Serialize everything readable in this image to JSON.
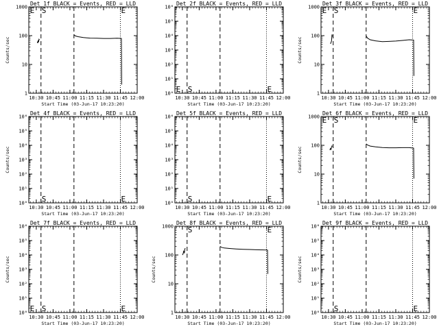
{
  "chart_data": [
    {
      "type": "line",
      "title": "Det 1f BLACK = Events, RED = LLD",
      "xlabel": "Start Time (03-Jun-17 10:23:20)",
      "ylabel": "Counts/sec",
      "yscale": "log",
      "ylim": [
        1,
        1000
      ],
      "y_tick_labels": [
        "1",
        "10",
        "100",
        "1000"
      ],
      "xlim_hours": [
        10.389,
        12.0
      ],
      "x_tick_labels": [
        "10:30",
        "10:45",
        "11:00",
        "11:15",
        "11:30",
        "11:45",
        "12:00"
      ],
      "vlines_dashed_hours": [
        10.57,
        11.06
      ],
      "vlines_dotted_hours": [
        11.75
      ],
      "markers": [
        {
          "text": "E",
          "x": 10.405,
          "y": 1000
        },
        {
          "text": "S",
          "x": 10.58,
          "y": 1000
        },
        {
          "text": "E",
          "x": 11.76,
          "y": 1000
        }
      ],
      "series": [
        {
          "color": "#000000",
          "segments": [
            [
              [
                10.515,
                62
              ],
              [
                10.522,
                55
              ],
              [
                10.528,
                68
              ],
              [
                10.535,
                60
              ],
              [
                10.54,
                75
              ],
              [
                10.548,
                72
              ]
            ],
            [
              [
                11.06,
                108
              ],
              [
                11.08,
                98
              ],
              [
                11.12,
                92
              ],
              [
                11.2,
                86
              ],
              [
                11.3,
                82
              ],
              [
                11.4,
                81
              ],
              [
                11.5,
                80
              ],
              [
                11.6,
                80
              ],
              [
                11.7,
                81
              ],
              [
                11.765,
                80
              ],
              [
                11.77,
                2
              ]
            ]
          ]
        }
      ]
    },
    {
      "type": "line",
      "title": "Det 2f BLACK = Events, RED = LLD",
      "xlabel": "Start Time (03-Jun-17 10:23:20)",
      "ylabel": "",
      "yscale": "log",
      "ylim": [
        1,
        1000000
      ],
      "y_tick_labels": [
        "10⁰",
        "10¹",
        "10²",
        "10³",
        "10⁴",
        "10⁵",
        "10⁶"
      ],
      "xlim_hours": [
        10.389,
        12.0
      ],
      "x_tick_labels": [
        "10:30",
        "10:45",
        "11:00",
        "11:15",
        "11:30",
        "11:45",
        "12:00"
      ],
      "vlines_dashed_hours": [
        10.57,
        11.06
      ],
      "vlines_dotted_hours": [
        11.75
      ],
      "markers": [
        {
          "text": "E",
          "x": 10.405,
          "y": 1.6
        },
        {
          "text": "S",
          "x": 10.58,
          "y": 1.6
        },
        {
          "text": "E",
          "x": 11.76,
          "y": 1.6
        }
      ],
      "series": []
    },
    {
      "type": "line",
      "title": "Det 3f BLACK = Events, RED = LLD",
      "xlabel": "Start Time (03-Jun-17 10:23:20)",
      "ylabel": "Counts/sec",
      "yscale": "log",
      "ylim": [
        1,
        1000
      ],
      "y_tick_labels": [
        "1",
        "10",
        "100",
        "1000"
      ],
      "xlim_hours": [
        10.389,
        12.0
      ],
      "x_tick_labels": [
        "10:30",
        "10:45",
        "11:00",
        "11:15",
        "11:30",
        "11:45",
        "12:00"
      ],
      "vlines_dashed_hours": [
        10.57,
        11.06
      ],
      "vlines_dotted_hours": [
        11.75
      ],
      "markers": [
        {
          "text": "E",
          "x": 10.405,
          "y": 1000
        },
        {
          "text": "S",
          "x": 10.58,
          "y": 1000
        },
        {
          "text": "E",
          "x": 11.76,
          "y": 1000
        }
      ],
      "series": [
        {
          "color": "#000000",
          "segments": [
            [
              [
                10.53,
                52
              ],
              [
                10.538,
                58
              ],
              [
                10.545,
                65
              ],
              [
                10.552,
                110
              ],
              [
                10.556,
                92
              ]
            ],
            [
              [
                11.06,
                98
              ],
              [
                11.08,
                82
              ],
              [
                11.12,
                72
              ],
              [
                11.2,
                66
              ],
              [
                11.3,
                62
              ],
              [
                11.4,
                63
              ],
              [
                11.5,
                65
              ],
              [
                11.6,
                68
              ],
              [
                11.7,
                72
              ],
              [
                11.765,
                70
              ],
              [
                11.77,
                4
              ]
            ]
          ]
        }
      ]
    },
    {
      "type": "line",
      "title": "Det 4f BLACK = Events, RED = LLD",
      "xlabel": "Start Time (03-Jun-17 10:23:20)",
      "ylabel": "Counts/sec",
      "yscale": "log",
      "ylim": [
        1,
        1000000
      ],
      "y_tick_labels": [
        "10⁰",
        "10¹",
        "10²",
        "10³",
        "10⁴",
        "10⁵",
        "10⁶"
      ],
      "xlim_hours": [
        10.389,
        12.0
      ],
      "x_tick_labels": [
        "10:30",
        "10:45",
        "11:00",
        "11:15",
        "11:30",
        "11:45",
        "12:00"
      ],
      "vlines_dashed_hours": [
        10.57,
        11.06
      ],
      "vlines_dotted_hours": [
        11.75
      ],
      "markers": [
        {
          "text": "S",
          "x": 10.58,
          "y": 1.6
        },
        {
          "text": "E",
          "x": 11.76,
          "y": 1.6
        }
      ],
      "series": []
    },
    {
      "type": "line",
      "title": "Det 5f BLACK = Events, RED = LLD",
      "xlabel": "Start Time (03-Jun-17 10:23:20)",
      "ylabel": "",
      "yscale": "log",
      "ylim": [
        1,
        1000000
      ],
      "y_tick_labels": [
        "10⁰",
        "10¹",
        "10²",
        "10³",
        "10⁴",
        "10⁵",
        "10⁶"
      ],
      "xlim_hours": [
        10.389,
        12.0
      ],
      "x_tick_labels": [
        "10:30",
        "10:45",
        "11:00",
        "11:15",
        "11:30",
        "11:45",
        "12:00"
      ],
      "vlines_dashed_hours": [
        10.57,
        11.06
      ],
      "vlines_dotted_hours": [
        11.75
      ],
      "markers": [
        {
          "text": "S",
          "x": 10.58,
          "y": 1.6
        },
        {
          "text": "E",
          "x": 11.76,
          "y": 1.6
        }
      ],
      "series": []
    },
    {
      "type": "line",
      "title": "Det 6f BLACK = Events, RED = LLD",
      "xlabel": "Start Time (03-Jun-17 10:23:20)",
      "ylabel": "Counts/sec",
      "yscale": "log",
      "ylim": [
        1,
        1000
      ],
      "y_tick_labels": [
        "1",
        "10",
        "100",
        "1000"
      ],
      "xlim_hours": [
        10.389,
        12.0
      ],
      "x_tick_labels": [
        "10:30",
        "10:45",
        "11:00",
        "11:15",
        "11:30",
        "11:45",
        "12:00"
      ],
      "vlines_dashed_hours": [
        10.57,
        11.06
      ],
      "vlines_dotted_hours": [
        11.75
      ],
      "markers": [
        {
          "text": "E",
          "x": 10.405,
          "y": 1000
        },
        {
          "text": "S",
          "x": 10.58,
          "y": 1000
        },
        {
          "text": "E",
          "x": 11.76,
          "y": 1000
        }
      ],
      "series": [
        {
          "color": "#000000",
          "segments": [
            [
              [
                10.52,
                68
              ],
              [
                10.53,
                78
              ],
              [
                10.538,
                72
              ],
              [
                10.545,
                85
              ],
              [
                10.552,
                95
              ],
              [
                10.556,
                88
              ]
            ],
            [
              [
                11.06,
                112
              ],
              [
                11.08,
                102
              ],
              [
                11.12,
                94
              ],
              [
                11.2,
                88
              ],
              [
                11.3,
                84
              ],
              [
                11.4,
                82
              ],
              [
                11.5,
                82
              ],
              [
                11.6,
                83
              ],
              [
                11.7,
                83
              ],
              [
                11.765,
                80
              ],
              [
                11.77,
                7
              ]
            ]
          ]
        }
      ]
    },
    {
      "type": "line",
      "title": "Det 7f BLACK = Events, RED = LLD",
      "xlabel": "Start Time (03-Jun-17 10:23:20)",
      "ylabel": "Counts/sec",
      "yscale": "log",
      "ylim": [
        1,
        1000000
      ],
      "y_tick_labels": [
        "10⁰",
        "10¹",
        "10²",
        "10³",
        "10⁴",
        "10⁵",
        "10⁶"
      ],
      "xlim_hours": [
        10.389,
        12.0
      ],
      "x_tick_labels": [
        "10:30",
        "10:45",
        "11:00",
        "11:15",
        "11:30",
        "11:45",
        "12:00"
      ],
      "vlines_dashed_hours": [
        10.57,
        11.06
      ],
      "vlines_dotted_hours": [
        11.75
      ],
      "markers": [
        {
          "text": "E",
          "x": 10.405,
          "y": 1.6
        },
        {
          "text": "S",
          "x": 10.58,
          "y": 1.6
        },
        {
          "text": "E",
          "x": 11.76,
          "y": 1.6
        }
      ],
      "series": []
    },
    {
      "type": "line",
      "title": "Det 8f BLACK = Events, RED = LLD",
      "xlabel": "Start Time (03-Jun-17 10:23:20)",
      "ylabel": "Counts/sec",
      "yscale": "log",
      "ylim": [
        1,
        1000
      ],
      "y_tick_labels": [
        "1",
        "10",
        "100",
        "1000"
      ],
      "xlim_hours": [
        10.389,
        12.0
      ],
      "x_tick_labels": [
        "10:30",
        "10:45",
        "11:00",
        "11:15",
        "11:30",
        "11:45",
        "12:00"
      ],
      "vlines_dashed_hours": [
        10.57,
        11.06
      ],
      "vlines_dotted_hours": [
        11.75
      ],
      "markers": [
        {
          "text": "S",
          "x": 10.58,
          "y": 1000
        },
        {
          "text": "E",
          "x": 11.76,
          "y": 1000
        }
      ],
      "series": [
        {
          "color": "#000000",
          "segments": [
            [
              [
                10.5,
                100
              ],
              [
                10.51,
                110
              ],
              [
                10.52,
                135
              ],
              [
                10.53,
                120
              ],
              [
                10.538,
                165
              ],
              [
                10.545,
                170
              ]
            ],
            [
              [
                11.06,
                200
              ],
              [
                11.08,
                185
              ],
              [
                11.12,
                175
              ],
              [
                11.2,
                168
              ],
              [
                11.3,
                162
              ],
              [
                11.4,
                158
              ],
              [
                11.5,
                155
              ],
              [
                11.6,
                152
              ],
              [
                11.7,
                150
              ],
              [
                11.765,
                148
              ],
              [
                11.77,
                22
              ]
            ]
          ]
        }
      ]
    },
    {
      "type": "line",
      "title": "Det 9f BLACK = Events, RED = LLD",
      "xlabel": "Start Time (03-Jun-17 10:23:20)",
      "ylabel": "Counts/sec",
      "yscale": "log",
      "ylim": [
        1,
        1000000
      ],
      "y_tick_labels": [
        "10⁰",
        "10¹",
        "10²",
        "10³",
        "10⁴",
        "10⁵",
        "10⁶"
      ],
      "xlim_hours": [
        10.389,
        12.0
      ],
      "x_tick_labels": [
        "10:30",
        "10:45",
        "11:00",
        "11:15",
        "11:30",
        "11:45",
        "12:00"
      ],
      "vlines_dashed_hours": [
        10.57,
        11.06
      ],
      "vlines_dotted_hours": [
        11.75
      ],
      "markers": [
        {
          "text": "S",
          "x": 10.58,
          "y": 1.6
        },
        {
          "text": "E",
          "x": 11.76,
          "y": 1.6
        }
      ],
      "series": []
    }
  ]
}
